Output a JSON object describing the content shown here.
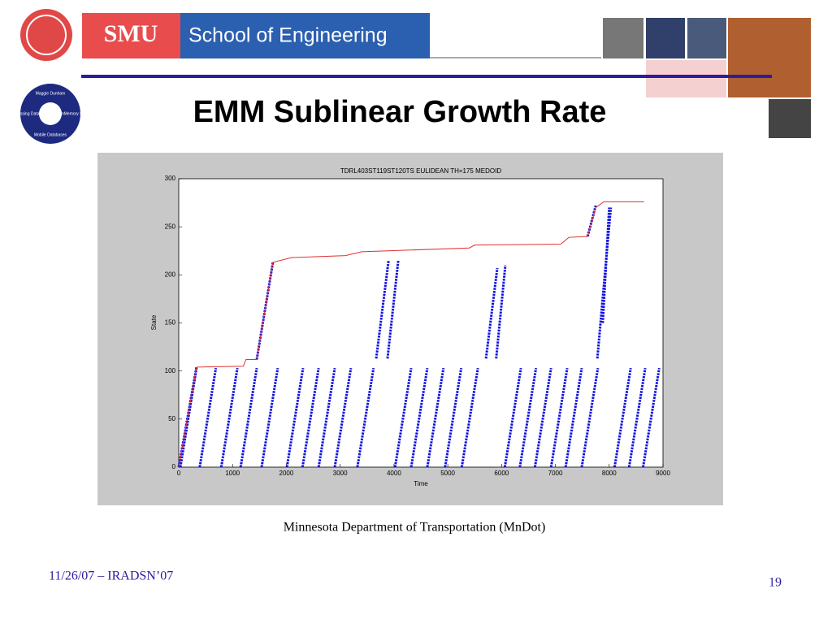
{
  "header": {
    "brand": "SMU",
    "school": "School of Engineering",
    "title": "EMM Sublinear Growth Rate",
    "logo": [
      "Maggie Dunham",
      "Missing Data",
      "MainMemory Databases",
      "Mobile Databases"
    ]
  },
  "caption": "Minnesota Department of Transportation (MnDot)",
  "footer": {
    "date": "11/26/07 – IRADSN’07",
    "page": "19"
  },
  "chart_data": {
    "type": "line",
    "title": "TDRL403ST119ST120TS EULIDEAN TH=175 MEDOID",
    "x_label": "Time",
    "y_label": "State",
    "xlim": [
      0,
      9000
    ],
    "xticks": [
      0,
      1000,
      2000,
      3000,
      4000,
      5000,
      6000,
      7000,
      8000,
      9000
    ],
    "ylim": [
      0,
      300
    ],
    "yticks": [
      0,
      50,
      100,
      150,
      200,
      250,
      300
    ],
    "series": [
      {
        "color": "#1010e0",
        "line_style": "dotted",
        "x": [
          0,
          330,
          null,
          1450,
          1750,
          null,
          30,
          330,
          null,
          390,
          690,
          null,
          790,
          1090,
          null,
          1150,
          1450,
          null,
          1540,
          1840,
          null,
          2010,
          2310,
          null,
          2300,
          2600,
          null,
          2600,
          2900,
          null,
          2900,
          3200,
          null,
          3320,
          3620,
          null,
          4020,
          4320,
          null,
          4320,
          4620,
          null,
          4620,
          4920,
          null,
          4950,
          5250,
          null,
          5260,
          5560,
          null,
          6060,
          6360,
          null,
          6340,
          6640,
          null,
          6620,
          6920,
          null,
          6920,
          7220,
          null,
          7190,
          7490,
          null,
          7490,
          7790,
          null,
          8100,
          8400,
          null,
          8370,
          8670,
          null,
          8630,
          8930,
          null,
          3670,
          3900,
          null,
          3880,
          4080,
          null,
          5710,
          5920,
          null,
          5900,
          6070,
          null,
          7780,
          8030,
          null,
          7880,
          8000,
          null,
          7600,
          7750
        ],
        "values": [
          0,
          104,
          null,
          112,
          213,
          null,
          0,
          103,
          null,
          0,
          103,
          null,
          0,
          103,
          null,
          0,
          103,
          null,
          0,
          103,
          null,
          0,
          103,
          null,
          0,
          103,
          null,
          0,
          103,
          null,
          0,
          103,
          null,
          0,
          103,
          null,
          0,
          103,
          null,
          0,
          103,
          null,
          0,
          103,
          null,
          0,
          103,
          null,
          0,
          103,
          null,
          0,
          103,
          null,
          0,
          103,
          null,
          0,
          103,
          null,
          0,
          103,
          null,
          0,
          103,
          null,
          0,
          103,
          null,
          0,
          103,
          null,
          0,
          103,
          null,
          0,
          103,
          null,
          113,
          215,
          null,
          113,
          215,
          null,
          113,
          207,
          null,
          113,
          210,
          null,
          113,
          270,
          null,
          150,
          270,
          null,
          240,
          272
        ]
      },
      {
        "color": "#e03030",
        "line_style": "solid",
        "x": [
          0,
          330,
          1200,
          1250,
          1450,
          1750,
          2100,
          3100,
          3400,
          5400,
          5500,
          7100,
          7250,
          7600,
          7750,
          7900,
          8650
        ],
        "values": [
          0,
          104,
          105,
          112,
          112,
          213,
          218,
          220,
          224,
          228,
          231,
          232,
          239,
          240,
          270,
          276,
          276
        ]
      }
    ]
  }
}
